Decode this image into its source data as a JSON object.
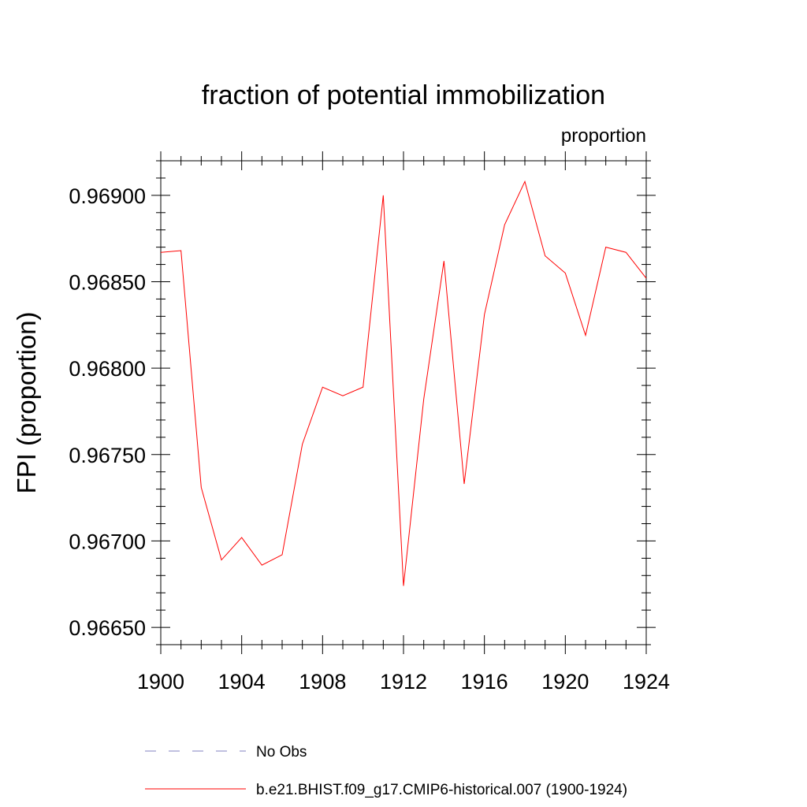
{
  "chart_data": {
    "type": "line",
    "title": "fraction of potential immobilization",
    "units_label": "proportion",
    "ylabel": "FPI  (proportion)",
    "xlabel": "",
    "xlim": [
      1900,
      1924
    ],
    "ylim": [
      0.9664,
      0.9692
    ],
    "x_ticks": [
      1900,
      1904,
      1908,
      1912,
      1916,
      1920,
      1924
    ],
    "x_tick_labels": [
      "1900",
      "1904",
      "1908",
      "1912",
      "1916",
      "1920",
      "1924"
    ],
    "y_ticks": [
      0.9665,
      0.967,
      0.9675,
      0.968,
      0.9685,
      0.969
    ],
    "y_tick_labels": [
      "0.96650",
      "0.96700",
      "0.96750",
      "0.96800",
      "0.96850",
      "0.96900"
    ],
    "grid": false,
    "legend_position": "bottom",
    "series": [
      {
        "name": "b.e21.BHIST.f09_g17.CMIP6-historical.007 (1900-1924)",
        "color": "#ff0000",
        "style": "solid",
        "x": [
          1900,
          1901,
          1902,
          1903,
          1904,
          1905,
          1906,
          1907,
          1908,
          1909,
          1910,
          1911,
          1912,
          1913,
          1914,
          1915,
          1916,
          1917,
          1918,
          1919,
          1920,
          1921,
          1922,
          1923,
          1924
        ],
        "y": [
          0.96867,
          0.96868,
          0.96731,
          0.96689,
          0.96702,
          0.96686,
          0.96692,
          0.96756,
          0.96789,
          0.96784,
          0.96789,
          0.969,
          0.96674,
          0.96782,
          0.96862,
          0.96733,
          0.96831,
          0.96883,
          0.96908,
          0.96865,
          0.96855,
          0.96819,
          0.9687,
          0.96867,
          0.96852
        ]
      }
    ],
    "legend": [
      {
        "label": "No Obs",
        "color": "#8080c0",
        "style": "dashed"
      },
      {
        "label": "b.e21.BHIST.f09_g17.CMIP6-historical.007 (1900-1924)",
        "color": "#ff0000",
        "style": "solid"
      }
    ]
  }
}
